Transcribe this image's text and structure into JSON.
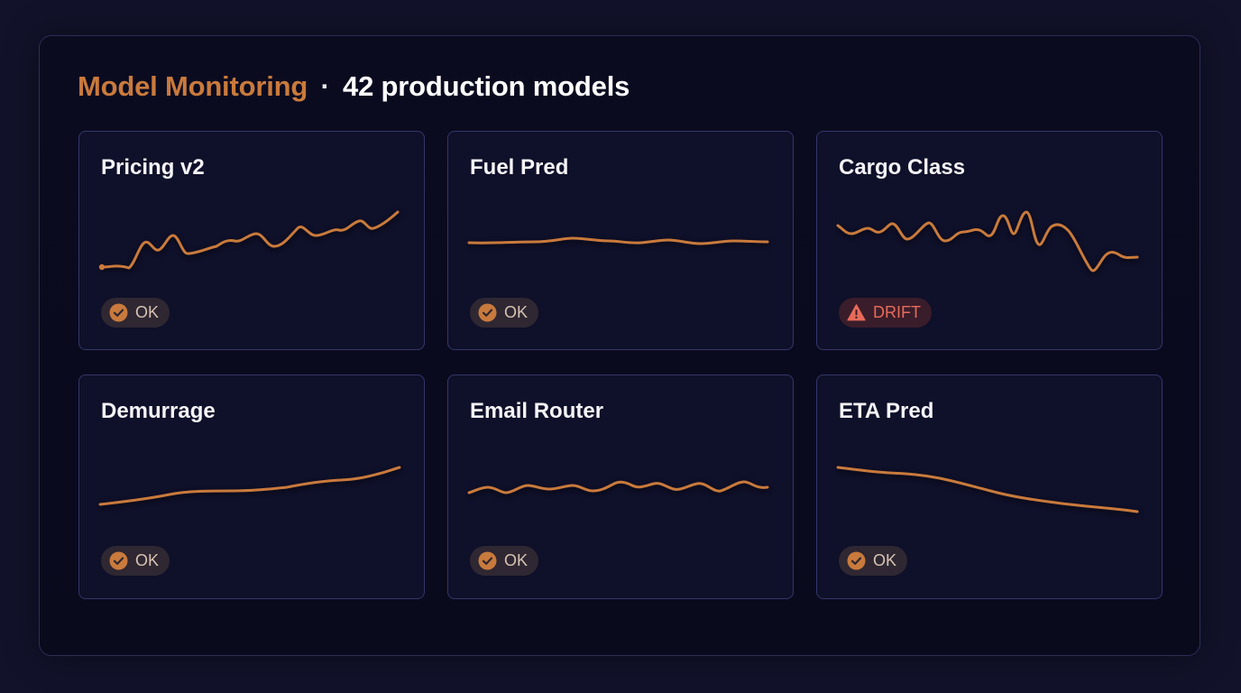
{
  "header": {
    "title": "Model Monitoring",
    "separator": "·",
    "subtitle": "42 production models"
  },
  "colors": {
    "accent": "#c97a3c",
    "ok_badge_bg": "#2f2732",
    "drift": "#e86b5a"
  },
  "models": [
    {
      "name": "Pricing v2",
      "status": "OK",
      "status_icon": "check-circle-icon"
    },
    {
      "name": "Fuel Pred",
      "status": "OK",
      "status_icon": "check-circle-icon"
    },
    {
      "name": "Cargo Class",
      "status": "DRIFT",
      "status_icon": "warning-triangle-icon"
    },
    {
      "name": "Demurrage",
      "status": "OK",
      "status_icon": "check-circle-icon"
    },
    {
      "name": "Email Router",
      "status": "OK",
      "status_icon": "check-circle-icon"
    },
    {
      "name": "ETA Pred",
      "status": "OK",
      "status_icon": "check-circle-icon"
    }
  ]
}
